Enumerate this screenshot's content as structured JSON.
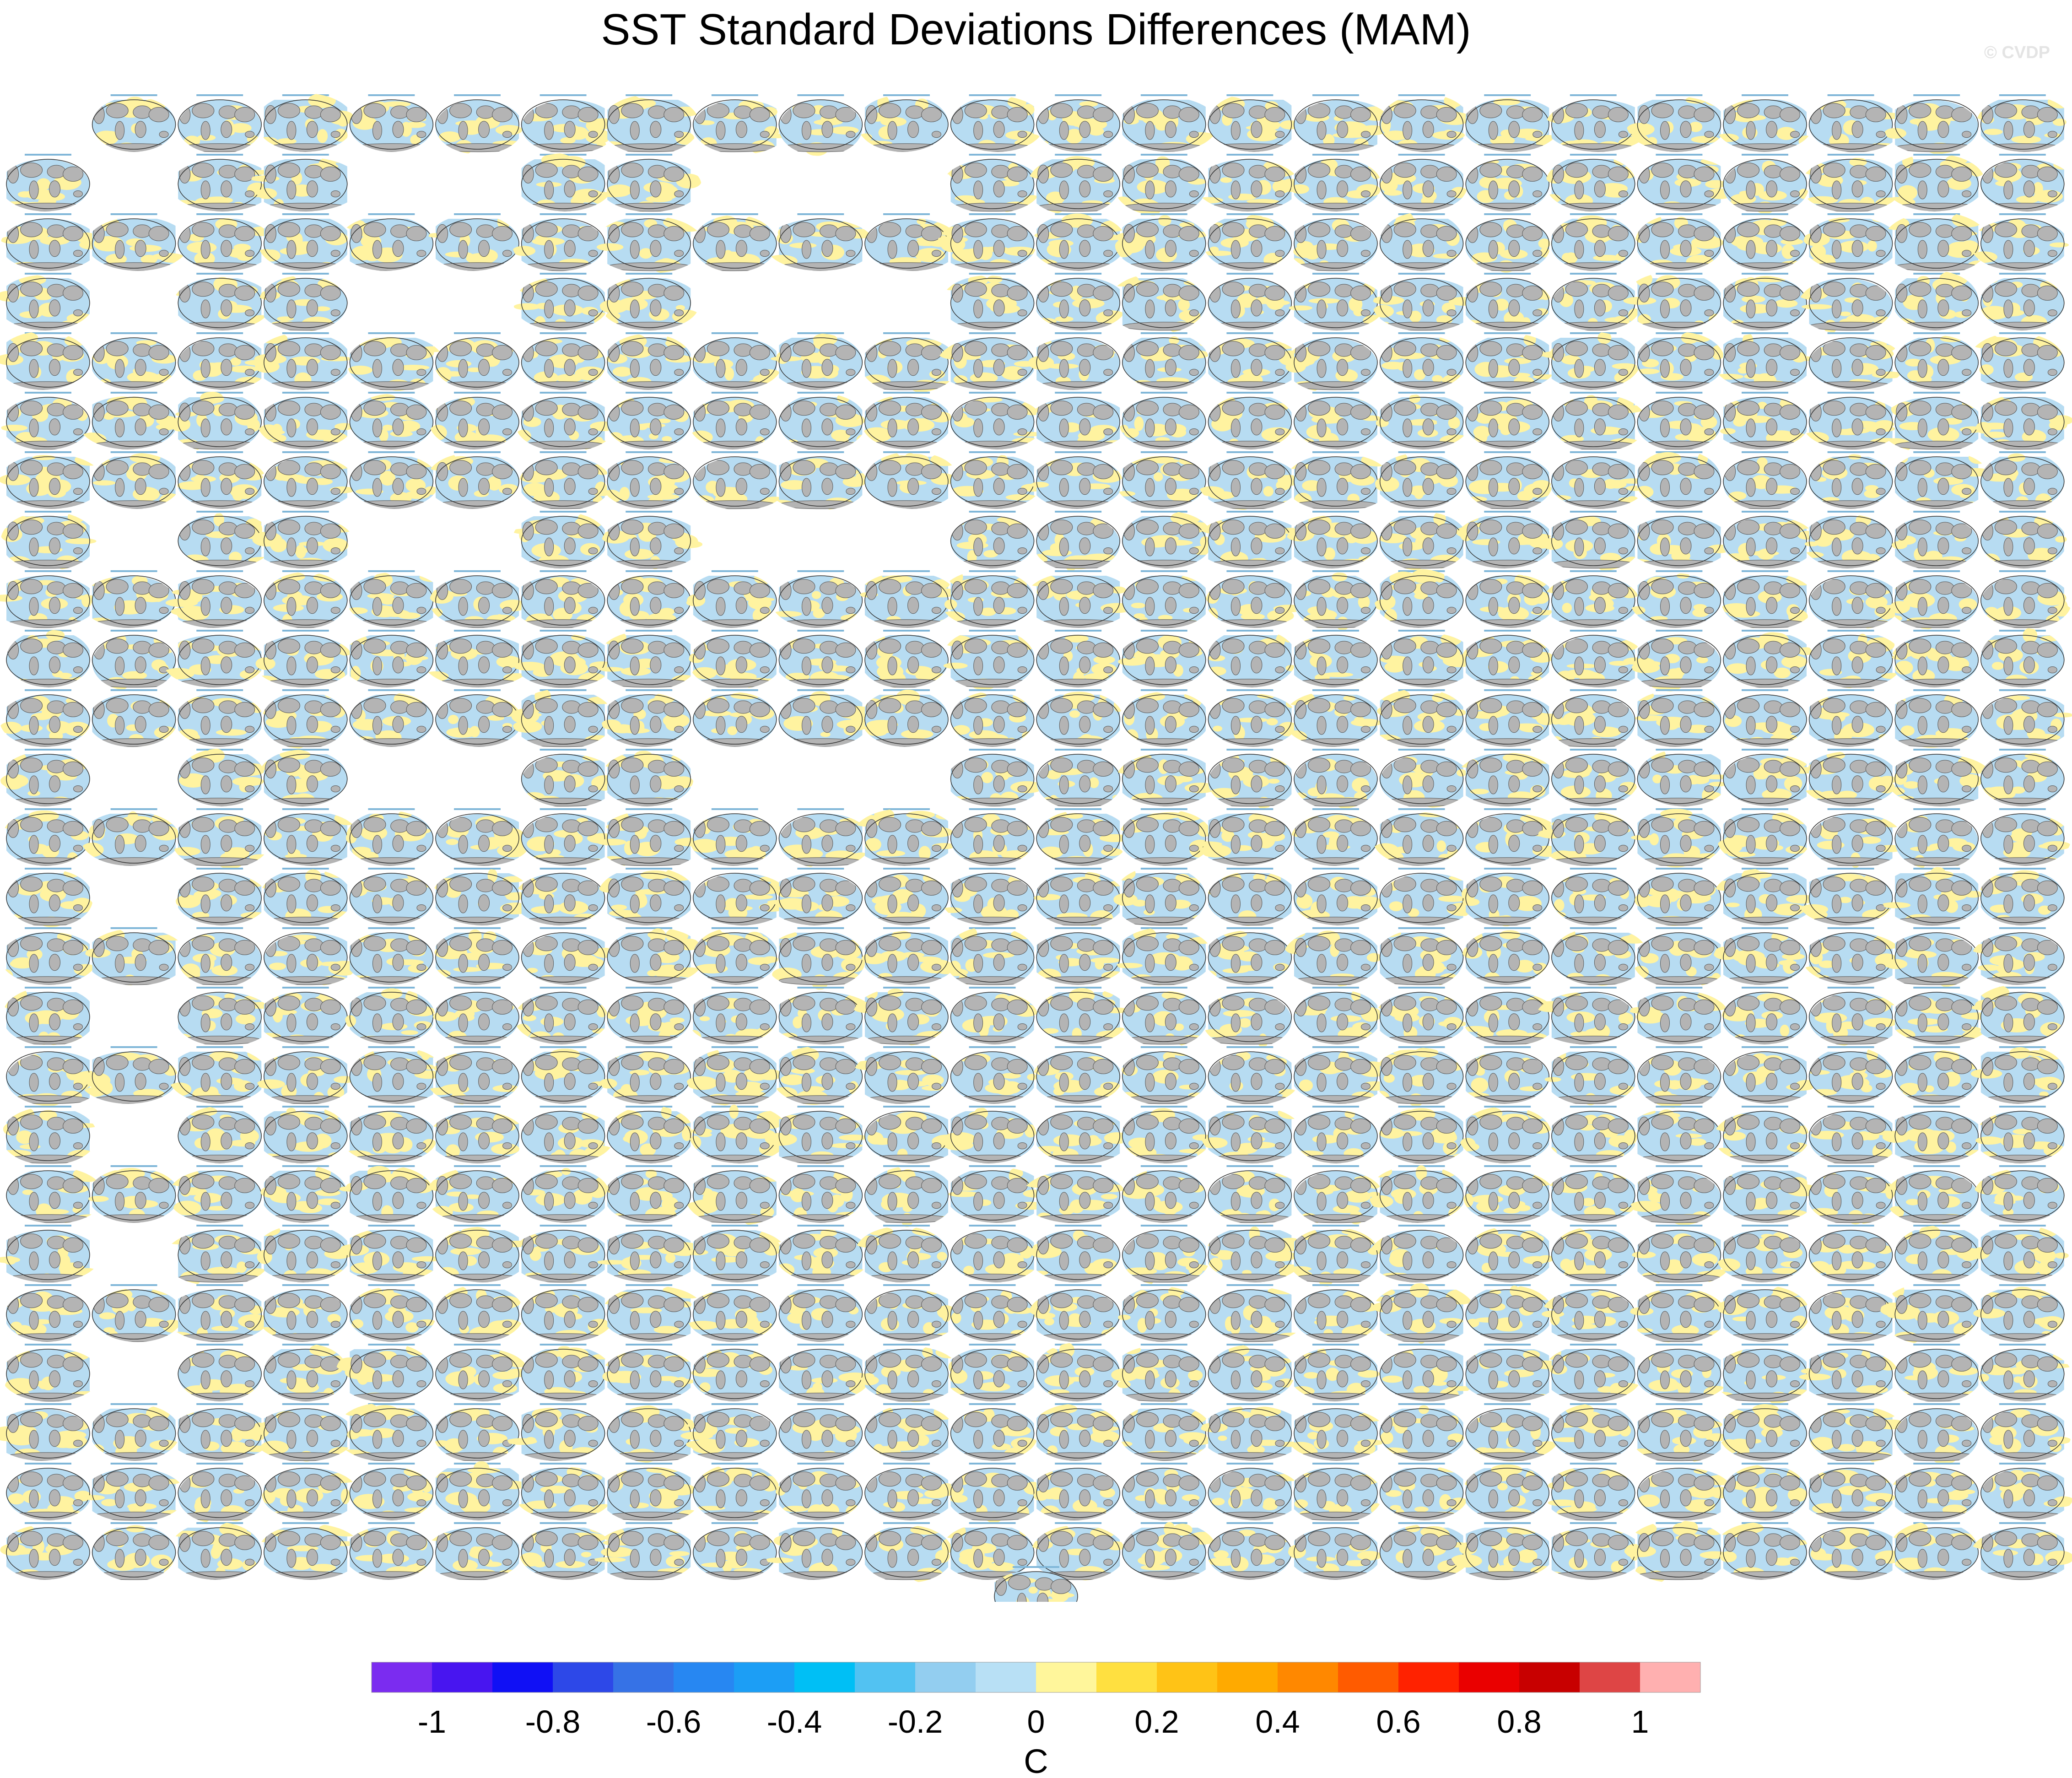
{
  "title": "SST Standard Deviations Differences (MAM)",
  "watermark": "© CVDP",
  "colors": {
    "land": "#b4b4b4",
    "ocean_neg": "#b7dcf2",
    "ocean_pos": "#fff3a0"
  },
  "chart_data": {
    "type": "heatmap",
    "title": "SST Standard Deviations Differences (MAM)",
    "description_panels": "grid of global map panels, one per ensemble member; blank cells mark missing members",
    "grid_rows": 25,
    "grid_cols": 24,
    "row_missing_cols": [
      [
        0
      ],
      [
        1,
        4,
        5,
        8,
        9,
        10
      ],
      [],
      [
        1,
        4,
        5,
        8,
        9,
        10
      ],
      [],
      [],
      [],
      [
        1,
        4,
        5,
        8,
        9,
        10
      ],
      [],
      [],
      [],
      [
        1,
        4,
        5,
        8,
        9,
        10
      ],
      [],
      [
        1
      ],
      [],
      [
        1
      ],
      [],
      [
        1
      ],
      [],
      [
        1
      ],
      [],
      [
        1
      ],
      [],
      [],
      []
    ],
    "extra_panel_count": 1,
    "colorbar": {
      "label": "C",
      "colors": [
        "#7b2cf0",
        "#4815f0",
        "#1010f5",
        "#2d48e8",
        "#3672e6",
        "#2787f2",
        "#1c9ef5",
        "#00bff5",
        "#52c2f2",
        "#93cef0",
        "#b8e0f5",
        "#fff69b",
        "#ffe040",
        "#ffc316",
        "#ffaa00",
        "#ff8800",
        "#ff5b00",
        "#ff2200",
        "#ea0000",
        "#c80000",
        "#de4545",
        "#ffb0b0"
      ],
      "tick_labels": [
        "-1",
        "-0.8",
        "-0.6",
        "-0.4",
        "-0.2",
        "0",
        "0.2",
        "0.4",
        "0.6",
        "0.8",
        "1"
      ],
      "min": -1.1,
      "max": 1.1,
      "step": 0.1
    }
  }
}
